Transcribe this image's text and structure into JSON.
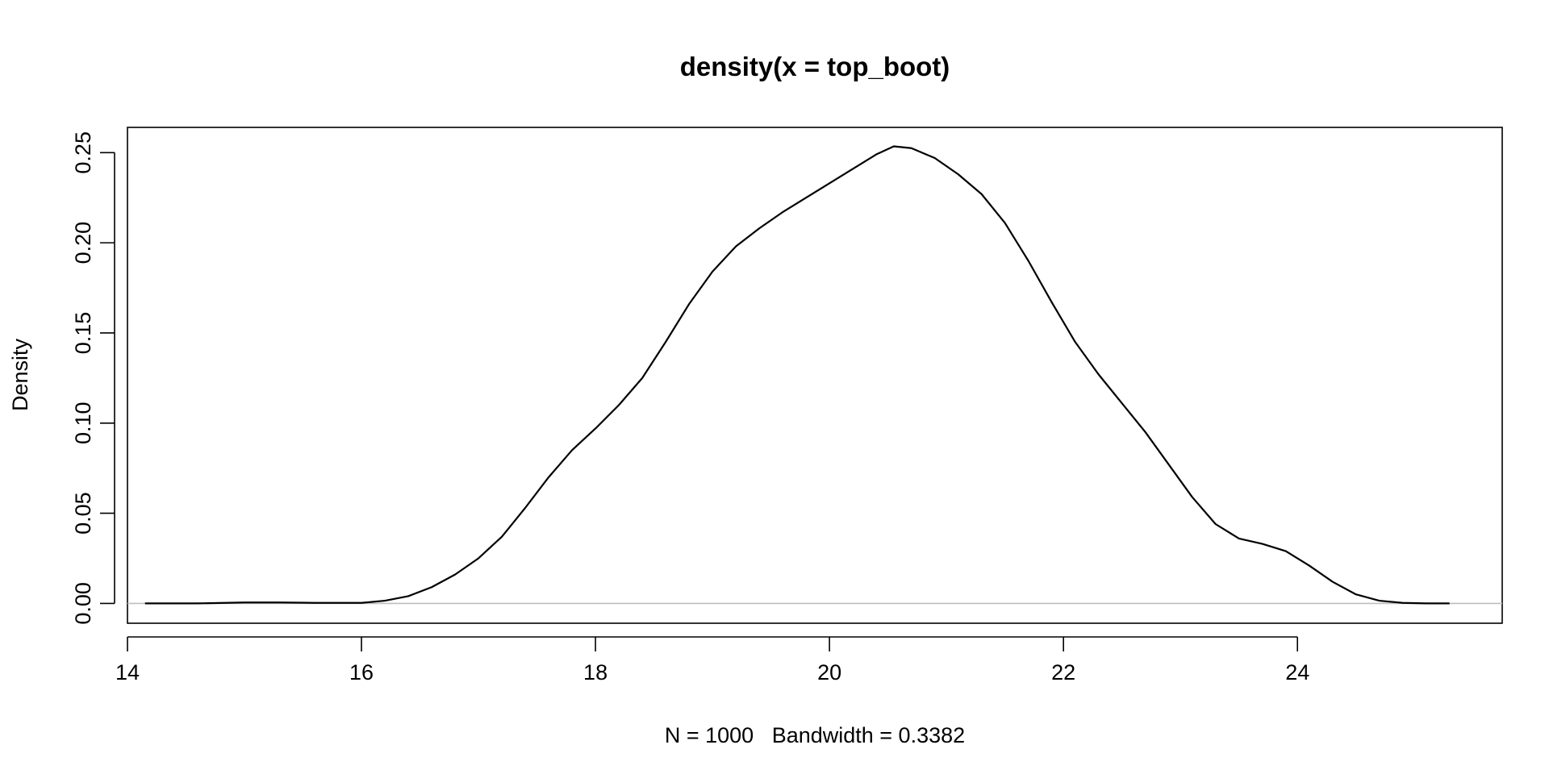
{
  "chart_data": {
    "type": "line",
    "title": "density(x = top_boot)",
    "xlabel": "N = 1000   Bandwidth = 0.3382",
    "ylabel": "Density",
    "xlim": [
      14,
      25.75
    ],
    "ylim": [
      -0.011,
      0.264
    ],
    "x_ticks": [
      14,
      16,
      18,
      20,
      22,
      24
    ],
    "x_tick_labels": [
      "14",
      "16",
      "18",
      "20",
      "22",
      "24"
    ],
    "y_ticks": [
      0.0,
      0.05,
      0.1,
      0.15,
      0.2,
      0.25
    ],
    "y_tick_labels": [
      "0.00",
      "0.05",
      "0.10",
      "0.15",
      "0.20",
      "0.25"
    ],
    "zero_line": true,
    "grid": false,
    "series": [
      {
        "color": "#000000",
        "x": [
          14.15,
          14.6,
          15.0,
          15.3,
          15.6,
          16.0,
          16.2,
          16.4,
          16.6,
          16.8,
          17.0,
          17.2,
          17.4,
          17.6,
          17.8,
          18.0,
          18.2,
          18.4,
          18.6,
          18.8,
          19.0,
          19.2,
          19.4,
          19.6,
          19.8,
          20.0,
          20.2,
          20.4,
          20.55,
          20.7,
          20.9,
          21.1,
          21.3,
          21.5,
          21.7,
          21.9,
          22.1,
          22.3,
          22.5,
          22.7,
          22.9,
          23.1,
          23.3,
          23.5,
          23.7,
          23.9,
          24.1,
          24.3,
          24.5,
          24.7,
          24.9,
          25.1,
          25.3
        ],
        "y": [
          0.0,
          0.0,
          0.0005,
          0.0005,
          0.0003,
          0.0003,
          0.0015,
          0.004,
          0.009,
          0.016,
          0.025,
          0.037,
          0.053,
          0.07,
          0.085,
          0.097,
          0.11,
          0.125,
          0.145,
          0.166,
          0.184,
          0.198,
          0.208,
          0.217,
          0.225,
          0.233,
          0.241,
          0.249,
          0.2535,
          0.2525,
          0.247,
          0.238,
          0.227,
          0.211,
          0.19,
          0.167,
          0.145,
          0.127,
          0.111,
          0.095,
          0.077,
          0.059,
          0.044,
          0.036,
          0.033,
          0.029,
          0.021,
          0.012,
          0.005,
          0.0015,
          0.0003,
          0.0,
          0.0
        ]
      }
    ]
  }
}
